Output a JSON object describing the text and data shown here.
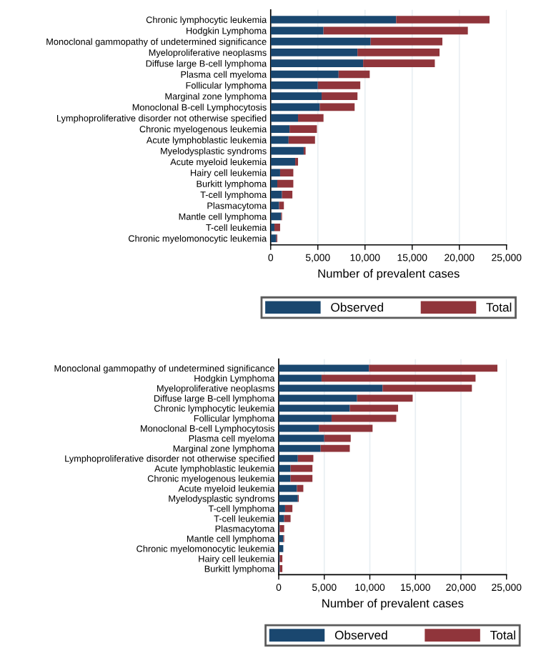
{
  "chart_data": [
    {
      "type": "bar",
      "orientation": "horizontal",
      "stacked": true,
      "xlabel": "Number of prevalent cases",
      "xlim": [
        0,
        25000
      ],
      "xticks": [
        {
          "value": 0,
          "label": "0"
        },
        {
          "value": 5000,
          "label": "5,000"
        },
        {
          "value": 10000,
          "label": "10,000"
        },
        {
          "value": 15000,
          "label": "15,000"
        },
        {
          "value": 20000,
          "label": "20,000"
        },
        {
          "value": 25000,
          "label": "25,000"
        }
      ],
      "grid": "x",
      "legend": "bottom",
      "categories": [
        "Chronic lymphocytic leukemia",
        "Hodgkin Lymphoma",
        "Monoclonal gammopathy of undetermined significance",
        "Myeloproliferative neoplasms",
        "Diffuse large B-cell lymphoma",
        "Plasma cell myeloma",
        "Follicular lymphoma",
        "Marginal zone lymphoma",
        "Monoclonal B-cell Lymphocytosis",
        "Lymphoproliferative disorder not otherwise specified",
        "Chronic myelogenous leukemia",
        "Acute lymphoblastic leukemia",
        "Myelodysplastic syndroms",
        "Acute myeloid leukemia",
        "Hairy cell leukemia",
        "Burkitt lymphoma",
        "T-cell lymphoma",
        "Plasmacytoma",
        "Mantle cell lymphoma",
        "T-cell leukemia",
        "Chronic myelomonocytic leukemia"
      ],
      "series": [
        {
          "name": "Observed",
          "color": "#1a476f",
          "values": [
            13300,
            5600,
            10600,
            9200,
            9800,
            7200,
            5000,
            5400,
            5200,
            2900,
            2000,
            1900,
            3500,
            2600,
            1000,
            700,
            1200,
            900,
            1100,
            400,
            600
          ]
        },
        {
          "name": "Total",
          "color": "#90353b",
          "values": [
            9900,
            15300,
            7600,
            8700,
            7600,
            3300,
            4500,
            3800,
            3700,
            2700,
            2900,
            2800,
            200,
            300,
            1400,
            1700,
            1100,
            500,
            100,
            600,
            100
          ]
        }
      ]
    },
    {
      "type": "bar",
      "orientation": "horizontal",
      "stacked": true,
      "xlabel": "Number of prevalent cases",
      "xlim": [
        0,
        25000
      ],
      "xticks": [
        {
          "value": 0,
          "label": "0"
        },
        {
          "value": 5000,
          "label": "5,000"
        },
        {
          "value": 10000,
          "label": "10,000"
        },
        {
          "value": 15000,
          "label": "15,000"
        },
        {
          "value": 20000,
          "label": "20,000"
        },
        {
          "value": 25000,
          "label": "25,000"
        }
      ],
      "grid": "x",
      "legend": "bottom",
      "categories": [
        "Monoclonal gammopathy of undetermined significance",
        "Hodgkin Lymphoma",
        "Myeloproliferative neoplasms",
        "Diffuse large B-cell lymphoma",
        "Chronic lymphocytic leukemia",
        "Follicular lymphoma",
        "Monoclonal B-cell Lymphocytosis",
        "Plasma cell myeloma",
        "Marginal zone lymphoma",
        "Lymphoproliferative disorder not otherwise specified",
        "Acute lymphoblastic leukemia",
        "Chronic myelogenous leukemia",
        "Acute myeloid leukemia",
        "Myelodysplastic syndroms",
        "T-cell lymphoma",
        "T-cell leukemia",
        "Plasmacytoma",
        "Mantle cell lymphoma",
        "Chronic myelomonocytic leukemia",
        "Hairy cell leukemia",
        "Burkitt lymphoma"
      ],
      "series": [
        {
          "name": "Observed",
          "color": "#1a476f",
          "values": [
            9900,
            4700,
            11400,
            8600,
            7800,
            5800,
            4400,
            5000,
            4600,
            2100,
            1300,
            1300,
            2000,
            2100,
            700,
            600,
            100,
            500,
            500,
            100,
            100
          ]
        },
        {
          "name": "Total",
          "color": "#90353b",
          "values": [
            14100,
            16900,
            9800,
            6100,
            5300,
            7100,
            5900,
            2900,
            3200,
            1700,
            2400,
            2400,
            700,
            100,
            800,
            700,
            500,
            100,
            0,
            300,
            300
          ]
        }
      ]
    }
  ]
}
